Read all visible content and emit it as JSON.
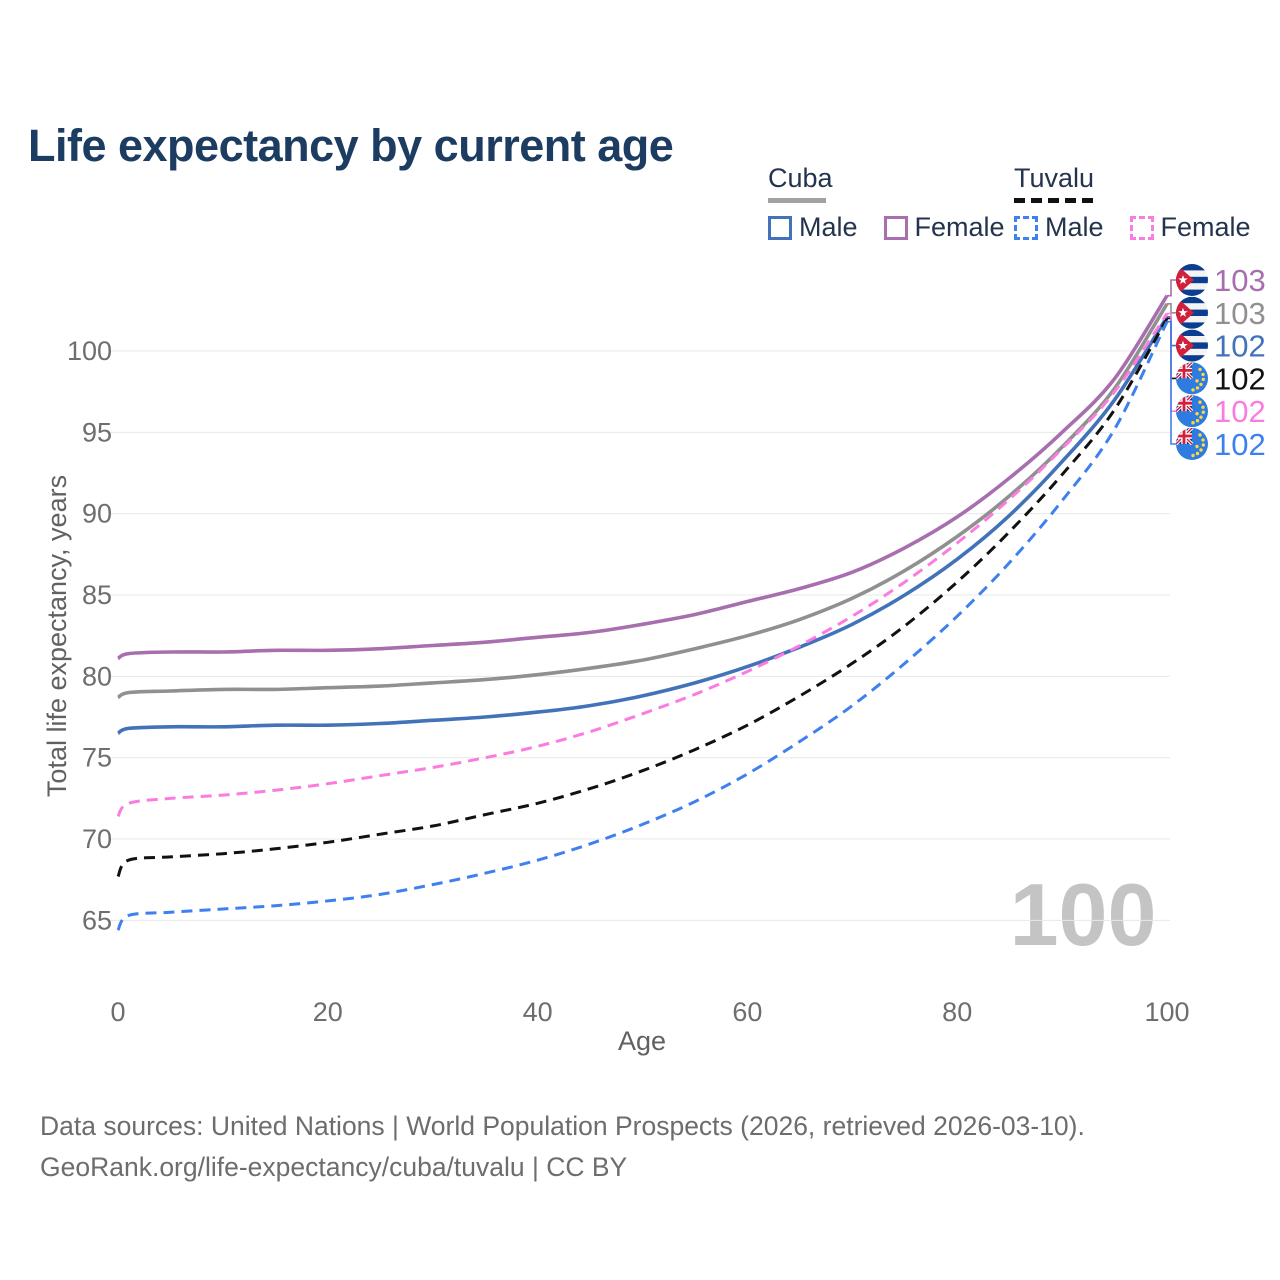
{
  "title": "Life expectancy by current age",
  "watermark_age": "100",
  "legend": {
    "groups": [
      {
        "country": "Cuba",
        "items": [
          {
            "label": "Male"
          },
          {
            "label": "Female"
          }
        ]
      },
      {
        "country": "Tuvalu",
        "items": [
          {
            "label": "Male"
          },
          {
            "label": "Female"
          }
        ]
      }
    ]
  },
  "footer": {
    "line1": "Data sources: United Nations | World Population Prospects (2026, retrieved 2026-03-10).",
    "line2": "GeoRank.org/life-expectancy/cuba/tuvalu | CC BY"
  },
  "colors": {
    "title_text": "#1d3c62",
    "legend_text": "#24344e",
    "axis_text": "#6e6e6e",
    "gridline": "#e8e8e8",
    "watermark": "#c4c4c4",
    "cuba_male": "#4273b8",
    "cuba_female": "#a76fae",
    "cuba_total": "#909090",
    "tuvalu_male": "#3f80ef",
    "tuvalu_female": "#fb7ce1",
    "tuvalu_total": "#111111"
  },
  "chart_data": {
    "type": "line",
    "title": "Life expectancy by current age",
    "xlabel": "Age",
    "ylabel": "Total life expectancy, years",
    "x_ticks": [
      0,
      20,
      40,
      60,
      80,
      100
    ],
    "y_ticks": [
      65,
      70,
      75,
      80,
      85,
      90,
      95,
      100
    ],
    "xlim": [
      0,
      100
    ],
    "ylim": [
      64,
      104
    ],
    "grid": "horizontal",
    "legend_position": "top-right",
    "x": [
      0,
      1,
      5,
      10,
      15,
      20,
      25,
      30,
      35,
      40,
      45,
      50,
      55,
      60,
      65,
      70,
      75,
      80,
      85,
      90,
      95,
      100
    ],
    "series": [
      {
        "id": "cuba-female",
        "name": "Cuba Female",
        "country": "Cuba",
        "sex": "Female",
        "color": "#a76fae",
        "dash": false,
        "flag": "cuba",
        "end_label": "103",
        "values": [
          81.1,
          81.4,
          81.5,
          81.5,
          81.6,
          81.6,
          81.7,
          81.9,
          82.1,
          82.4,
          82.7,
          83.2,
          83.8,
          84.6,
          85.4,
          86.4,
          87.9,
          89.8,
          92.2,
          95.0,
          98.3,
          103.4
        ]
      },
      {
        "id": "cuba-total",
        "name": "Cuba Both sexes",
        "country": "Cuba",
        "sex": "Both",
        "color": "#909090",
        "dash": false,
        "flag": "cuba",
        "end_label": "103",
        "values": [
          78.7,
          79.0,
          79.1,
          79.2,
          79.2,
          79.3,
          79.4,
          79.6,
          79.8,
          80.1,
          80.5,
          81.0,
          81.7,
          82.5,
          83.5,
          84.8,
          86.5,
          88.6,
          91.1,
          94.1,
          97.7,
          102.9
        ]
      },
      {
        "id": "cuba-male",
        "name": "Cuba Male",
        "country": "Cuba",
        "sex": "Male",
        "color": "#4273b8",
        "dash": false,
        "flag": "cuba",
        "end_label": "102",
        "values": [
          76.5,
          76.8,
          76.9,
          76.9,
          77.0,
          77.0,
          77.1,
          77.3,
          77.5,
          77.8,
          78.2,
          78.8,
          79.6,
          80.6,
          81.8,
          83.2,
          85.0,
          87.2,
          89.9,
          93.2,
          97.0,
          102.1
        ]
      },
      {
        "id": "tuvalu-total",
        "name": "Tuvalu Both sexes",
        "country": "Tuvalu",
        "sex": "Both",
        "color": "#111111",
        "dash": true,
        "flag": "tuvalu",
        "end_label": "102",
        "values": [
          67.7,
          68.7,
          68.9,
          69.1,
          69.4,
          69.8,
          70.3,
          70.8,
          71.5,
          72.2,
          73.1,
          74.2,
          75.5,
          77.0,
          78.8,
          80.8,
          83.1,
          85.8,
          88.9,
          92.4,
          96.4,
          102.0
        ]
      },
      {
        "id": "tuvalu-female",
        "name": "Tuvalu Female",
        "country": "Tuvalu",
        "sex": "Female",
        "color": "#fb7ce1",
        "dash": true,
        "flag": "tuvalu",
        "end_label": "102",
        "values": [
          71.4,
          72.2,
          72.5,
          72.7,
          73.0,
          73.4,
          73.9,
          74.4,
          75.0,
          75.7,
          76.6,
          77.7,
          78.9,
          80.3,
          81.9,
          83.7,
          85.8,
          88.2,
          90.9,
          94.0,
          97.5,
          102.3
        ]
      },
      {
        "id": "tuvalu-male",
        "name": "Tuvalu Male",
        "country": "Tuvalu",
        "sex": "Male",
        "color": "#3f80ef",
        "dash": true,
        "flag": "tuvalu",
        "end_label": "102",
        "values": [
          64.4,
          65.3,
          65.5,
          65.7,
          65.9,
          66.2,
          66.6,
          67.2,
          67.9,
          68.7,
          69.7,
          70.9,
          72.3,
          74.0,
          76.0,
          78.2,
          80.8,
          83.7,
          87.0,
          90.8,
          95.2,
          101.8
        ]
      }
    ]
  }
}
